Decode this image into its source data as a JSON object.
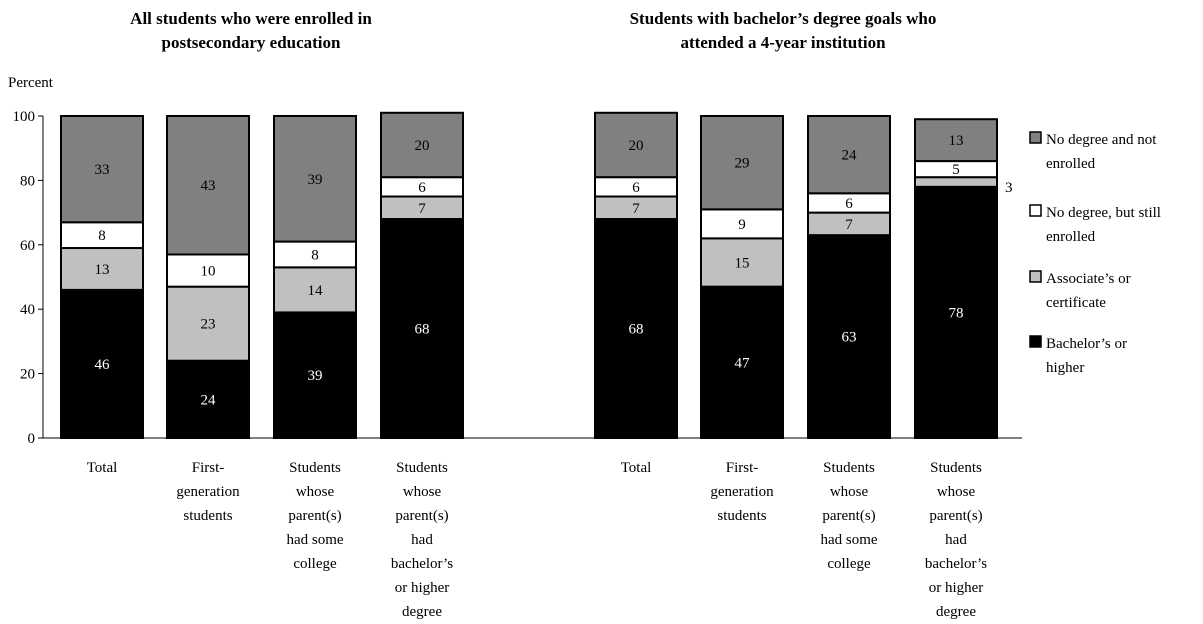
{
  "chart_data": {
    "type": "bar",
    "stacked": true,
    "ylabel": "Percent",
    "ylim": [
      0,
      100
    ],
    "yticks": [
      0,
      20,
      40,
      60,
      80,
      100
    ],
    "grid": false,
    "legend_position": "right",
    "colors": {
      "Bachelor’s or higher": "#000000",
      "Associate’s or certificate": "#c0c0c0",
      "No degree, but still enrolled": "#ffffff",
      "No degree and not enrolled": "#808080"
    },
    "legend": [
      {
        "key": "No degree and not enrolled",
        "lines": [
          "No degree and not",
          "enrolled"
        ]
      },
      {
        "key": "No degree, but still enrolled",
        "lines": [
          "No degree, but still",
          "enrolled"
        ]
      },
      {
        "key": "Associate’s or certificate",
        "lines": [
          "Associate’s or",
          "certificate"
        ]
      },
      {
        "key": "Bachelor’s or higher",
        "lines": [
          "Bachelor’s or",
          "higher"
        ]
      }
    ],
    "panels": [
      {
        "title_lines": [
          "All students who were enrolled in",
          "postsecondary education"
        ],
        "categories": [
          [
            "Total"
          ],
          [
            "First-",
            "generation",
            "students"
          ],
          [
            "Students",
            "whose",
            "parent(s)",
            "had some",
            "college"
          ],
          [
            "Students",
            "whose",
            "parent(s)",
            "had",
            "bachelor’s",
            "or higher",
            "degree"
          ]
        ],
        "series": [
          {
            "name": "Bachelor’s or higher",
            "values": [
              46,
              24,
              39,
              68
            ]
          },
          {
            "name": "Associate’s or certificate",
            "values": [
              13,
              23,
              14,
              7
            ]
          },
          {
            "name": "No degree, but still enrolled",
            "values": [
              8,
              10,
              8,
              6
            ]
          },
          {
            "name": "No degree and not enrolled",
            "values": [
              33,
              43,
              39,
              20
            ]
          }
        ]
      },
      {
        "title_lines": [
          "Students with bachelor’s degree goals who",
          "attended a 4-year institution"
        ],
        "categories": [
          [
            "Total"
          ],
          [
            "First-",
            "generation",
            "students"
          ],
          [
            "Students",
            "whose",
            "parent(s)",
            "had some",
            "college"
          ],
          [
            "Students",
            "whose",
            "parent(s)",
            "had",
            "bachelor’s",
            "or higher",
            "degree"
          ]
        ],
        "series": [
          {
            "name": "Bachelor’s or higher",
            "values": [
              68,
              47,
              63,
              78
            ]
          },
          {
            "name": "Associate’s or certificate",
            "values": [
              7,
              15,
              7,
              3
            ]
          },
          {
            "name": "No degree, but still enrolled",
            "values": [
              6,
              9,
              6,
              5
            ]
          },
          {
            "name": "No degree and not enrolled",
            "values": [
              20,
              29,
              24,
              13
            ]
          }
        ]
      }
    ]
  }
}
